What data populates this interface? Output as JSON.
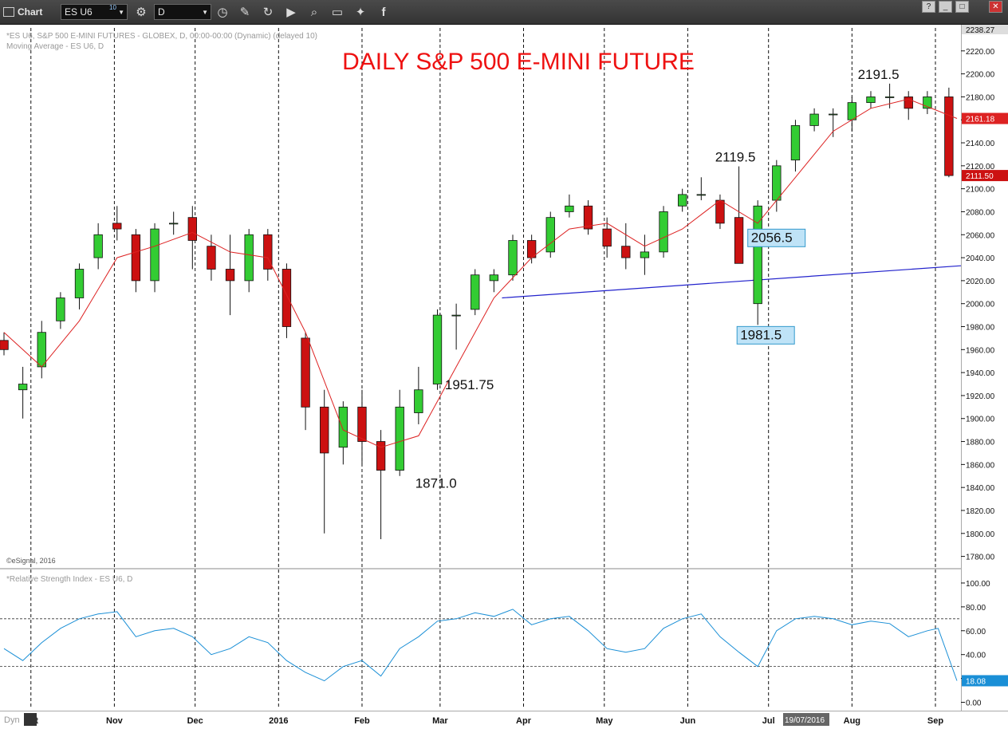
{
  "toolbar": {
    "title": "Chart",
    "symbol": "ES U6",
    "symbol_superscript": "10",
    "interval": "D",
    "tools": [
      "clock-icon",
      "pencil-icon",
      "refresh-icon",
      "play-icon",
      "search-icon",
      "comment-icon",
      "twitter-icon",
      "facebook-icon"
    ],
    "window_buttons": [
      "?",
      "_",
      "□",
      "✕"
    ]
  },
  "header": {
    "line1": "*ES U6, S&P 500 E-MINI FUTURES - GLOBEX, D, 00:00-00:00 (Dynamic) (delayed 10)",
    "line2": "Moving Average - ES U6, D",
    "copyright": "©eSignal, 2016"
  },
  "rsi_header": "*Relative Strength Index - ES U6, D",
  "bottom": {
    "dyn": "Dyn",
    "cursor_date": "19/07/2016"
  },
  "colors": {
    "up": "#33cc33",
    "down": "#cc1111",
    "ma": "#dd2222",
    "rsi": "#1a8fd6",
    "trend": "#2222cc",
    "title": "#ee1111",
    "label_box": "#bfe3f7"
  },
  "chart_data": [
    {
      "type": "candlestick",
      "title": "DAILY S&P 500 E-MINI FUTURE",
      "ylim": [
        1770,
        2240
      ],
      "y_ticks": [
        1780,
        1800,
        1820,
        1840,
        1860,
        1880,
        1900,
        1920,
        1940,
        1960,
        1980,
        2000,
        2020,
        2040,
        2060,
        2080,
        2100,
        2120,
        2140,
        2160,
        2180,
        2200,
        2220
      ],
      "top_value": "2238.27",
      "last_value": "2111.50",
      "ma_value": "2161.18",
      "x_labels": [
        "Oct",
        "Nov",
        "Dec",
        "2016",
        "Feb",
        "Mar",
        "Apr",
        "May",
        "Jun",
        "Jul",
        "Aug",
        "Sep"
      ],
      "x_range": [
        "2015-09-21",
        "2016-09-09"
      ],
      "annotations": [
        {
          "text": "2191.5",
          "date": "2016-08-15",
          "y": 2191.5,
          "boxed": false
        },
        {
          "text": "2119.5",
          "date": "2016-06-23",
          "y": 2119.5,
          "boxed": false
        },
        {
          "text": "2056.5",
          "date": "2016-07-01",
          "y": 2056.5,
          "boxed": true
        },
        {
          "text": "1981.5",
          "date": "2016-06-27",
          "y": 1981.5,
          "boxed": true
        },
        {
          "text": "1951.75",
          "date": "2016-03-01",
          "y": 1951.75,
          "boxed": false
        },
        {
          "text": "1871.0",
          "date": "2016-02-19",
          "y": 1871.0,
          "boxed": false
        }
      ],
      "trendline": [
        {
          "date": "2016-03-24",
          "y": 2005
        },
        {
          "date": "2016-09-09",
          "y": 2033
        }
      ],
      "series": [
        {
          "name": "ES U6",
          "points": [
            [
              "2015-09-21",
              1968,
              1975,
              1955,
              1960
            ],
            [
              "2015-09-28",
              1925,
              1945,
              1900,
              1930
            ],
            [
              "2015-10-05",
              1945,
              1985,
              1935,
              1975
            ],
            [
              "2015-10-12",
              1985,
              2010,
              1978,
              2005
            ],
            [
              "2015-10-19",
              2005,
              2035,
              1995,
              2030
            ],
            [
              "2015-10-26",
              2040,
              2070,
              2030,
              2060
            ],
            [
              "2015-11-02",
              2070,
              2085,
              2055,
              2065
            ],
            [
              "2015-11-09",
              2060,
              2065,
              2010,
              2020
            ],
            [
              "2015-11-16",
              2020,
              2070,
              2010,
              2065
            ],
            [
              "2015-11-23",
              2070,
              2080,
              2060,
              2070
            ],
            [
              "2015-11-30",
              2075,
              2085,
              2030,
              2055
            ],
            [
              "2015-12-07",
              2050,
              2060,
              2020,
              2030
            ],
            [
              "2015-12-14",
              2030,
              2060,
              1990,
              2020
            ],
            [
              "2015-12-21",
              2020,
              2065,
              2010,
              2060
            ],
            [
              "2015-12-28",
              2060,
              2065,
              2020,
              2030
            ],
            [
              "2016-01-04",
              2030,
              2035,
              1970,
              1980
            ],
            [
              "2016-01-11",
              1970,
              1975,
              1890,
              1910
            ],
            [
              "2016-01-18",
              1910,
              1925,
              1800,
              1870
            ],
            [
              "2016-01-25",
              1875,
              1915,
              1860,
              1910
            ],
            [
              "2016-02-01",
              1910,
              1925,
              1860,
              1880
            ],
            [
              "2016-02-08",
              1880,
              1890,
              1795,
              1855
            ],
            [
              "2016-02-15",
              1855,
              1925,
              1850,
              1910
            ],
            [
              "2016-02-22",
              1905,
              1945,
              1895,
              1925
            ],
            [
              "2016-02-29",
              1930,
              1995,
              1925,
              1990
            ],
            [
              "2016-03-07",
              1990,
              2000,
              1960,
              1990
            ],
            [
              "2016-03-14",
              1995,
              2030,
              1990,
              2025
            ],
            [
              "2016-03-21",
              2020,
              2030,
              2010,
              2025
            ],
            [
              "2016-03-28",
              2025,
              2060,
              2020,
              2055
            ],
            [
              "2016-04-04",
              2055,
              2060,
              2035,
              2040
            ],
            [
              "2016-04-11",
              2045,
              2080,
              2040,
              2075
            ],
            [
              "2016-04-18",
              2080,
              2095,
              2075,
              2085
            ],
            [
              "2016-04-25",
              2085,
              2090,
              2060,
              2065
            ],
            [
              "2016-05-02",
              2065,
              2075,
              2040,
              2050
            ],
            [
              "2016-05-09",
              2050,
              2070,
              2030,
              2040
            ],
            [
              "2016-05-16",
              2040,
              2060,
              2025,
              2045
            ],
            [
              "2016-05-23",
              2045,
              2085,
              2040,
              2080
            ],
            [
              "2016-05-30",
              2085,
              2100,
              2080,
              2095
            ],
            [
              "2016-06-06",
              2095,
              2110,
              2090,
              2095
            ],
            [
              "2016-06-13",
              2090,
              2095,
              2065,
              2070
            ],
            [
              "2016-06-20",
              2075,
              2119.5,
              2060,
              2035
            ],
            [
              "2016-06-27",
              2000,
              2090,
              1981.5,
              2085
            ],
            [
              "2016-07-04",
              2090,
              2125,
              2080,
              2120
            ],
            [
              "2016-07-11",
              2125,
              2160,
              2115,
              2155
            ],
            [
              "2016-07-18",
              2155,
              2170,
              2150,
              2165
            ],
            [
              "2016-07-25",
              2165,
              2170,
              2145,
              2165
            ],
            [
              "2016-08-01",
              2160,
              2180,
              2150,
              2175
            ],
            [
              "2016-08-08",
              2175,
              2185,
              2170,
              2180
            ],
            [
              "2016-08-15",
              2180,
              2191.5,
              2170,
              2180
            ],
            [
              "2016-08-22",
              2180,
              2185,
              2160,
              2170
            ],
            [
              "2016-08-29",
              2170,
              2185,
              2165,
              2180
            ],
            [
              "2016-09-06",
              2180,
              2188,
              2110,
              2111.5
            ]
          ]
        },
        {
          "name": "Moving Average",
          "points": [
            [
              "2015-09-21",
              1975
            ],
            [
              "2015-10-05",
              1945
            ],
            [
              "2015-10-19",
              1985
            ],
            [
              "2015-11-02",
              2040
            ],
            [
              "2015-11-16",
              2050
            ],
            [
              "2015-11-30",
              2062
            ],
            [
              "2015-12-14",
              2045
            ],
            [
              "2015-12-28",
              2040
            ],
            [
              "2016-01-11",
              1975
            ],
            [
              "2016-01-25",
              1890
            ],
            [
              "2016-02-08",
              1875
            ],
            [
              "2016-02-22",
              1885
            ],
            [
              "2016-03-07",
              1945
            ],
            [
              "2016-03-21",
              2005
            ],
            [
              "2016-04-04",
              2040
            ],
            [
              "2016-04-18",
              2065
            ],
            [
              "2016-05-02",
              2070
            ],
            [
              "2016-05-16",
              2050
            ],
            [
              "2016-05-30",
              2065
            ],
            [
              "2016-06-13",
              2090
            ],
            [
              "2016-06-27",
              2070
            ],
            [
              "2016-07-11",
              2110
            ],
            [
              "2016-07-25",
              2150
            ],
            [
              "2016-08-08",
              2170
            ],
            [
              "2016-08-22",
              2178
            ],
            [
              "2016-09-09",
              2161.18
            ]
          ]
        }
      ]
    },
    {
      "type": "line",
      "title": "*Relative Strength Index - ES U6, D",
      "ylim": [
        -5,
        110
      ],
      "y_ticks": [
        0,
        20,
        40,
        60,
        80,
        100
      ],
      "y_tick_labels": [
        "0.00",
        "20.00",
        "40.00",
        "60.00",
        "80.00",
        "100.00"
      ],
      "reference_lines": [
        30,
        70
      ],
      "last_value": "18.08",
      "series": [
        {
          "name": "RSI",
          "points": [
            [
              "2015-09-21",
              45
            ],
            [
              "2015-09-28",
              35
            ],
            [
              "2015-10-05",
              50
            ],
            [
              "2015-10-12",
              62
            ],
            [
              "2015-10-19",
              70
            ],
            [
              "2015-10-26",
              74
            ],
            [
              "2015-11-02",
              76
            ],
            [
              "2015-11-09",
              55
            ],
            [
              "2015-11-16",
              60
            ],
            [
              "2015-11-23",
              62
            ],
            [
              "2015-11-30",
              55
            ],
            [
              "2015-12-07",
              40
            ],
            [
              "2015-12-14",
              45
            ],
            [
              "2015-12-21",
              55
            ],
            [
              "2015-12-28",
              50
            ],
            [
              "2016-01-04",
              35
            ],
            [
              "2016-01-11",
              25
            ],
            [
              "2016-01-18",
              18
            ],
            [
              "2016-01-25",
              30
            ],
            [
              "2016-02-01",
              35
            ],
            [
              "2016-02-08",
              22
            ],
            [
              "2016-02-15",
              45
            ],
            [
              "2016-02-22",
              55
            ],
            [
              "2016-02-29",
              68
            ],
            [
              "2016-03-07",
              70
            ],
            [
              "2016-03-14",
              75
            ],
            [
              "2016-03-21",
              72
            ],
            [
              "2016-03-28",
              78
            ],
            [
              "2016-04-04",
              65
            ],
            [
              "2016-04-11",
              70
            ],
            [
              "2016-04-18",
              72
            ],
            [
              "2016-04-25",
              60
            ],
            [
              "2016-05-02",
              45
            ],
            [
              "2016-05-09",
              42
            ],
            [
              "2016-05-16",
              45
            ],
            [
              "2016-05-23",
              62
            ],
            [
              "2016-05-30",
              70
            ],
            [
              "2016-06-06",
              74
            ],
            [
              "2016-06-13",
              55
            ],
            [
              "2016-06-20",
              42
            ],
            [
              "2016-06-27",
              30
            ],
            [
              "2016-07-04",
              60
            ],
            [
              "2016-07-11",
              70
            ],
            [
              "2016-07-18",
              72
            ],
            [
              "2016-07-25",
              70
            ],
            [
              "2016-08-01",
              65
            ],
            [
              "2016-08-08",
              68
            ],
            [
              "2016-08-15",
              66
            ],
            [
              "2016-08-22",
              55
            ],
            [
              "2016-08-29",
              60
            ],
            [
              "2016-09-02",
              62
            ],
            [
              "2016-09-09",
              18.08
            ]
          ]
        }
      ]
    }
  ]
}
